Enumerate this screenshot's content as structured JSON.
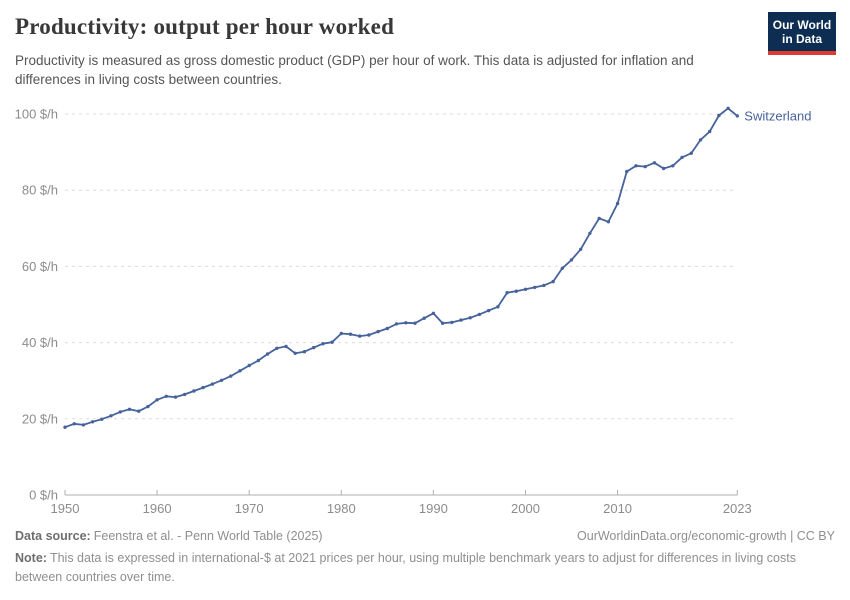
{
  "header": {
    "title": "Productivity: output per hour worked",
    "subtitle": "Productivity is measured as gross domestic product (GDP) per hour of work. This data is adjusted for inflation and differences in living costs between countries.",
    "logo": {
      "line1": "Our World",
      "line2": "in Data"
    }
  },
  "chart_data": {
    "type": "line",
    "title": "Productivity: output per hour worked",
    "xlabel": "",
    "ylabel": "$ per hour",
    "xlim": [
      1950,
      2023
    ],
    "ylim": [
      0,
      100
    ],
    "x_ticks": [
      1950,
      1960,
      1970,
      1980,
      1990,
      2000,
      2010,
      2023
    ],
    "y_ticks": [
      0,
      20,
      40,
      60,
      80,
      100
    ],
    "y_tick_suffix": " $/h",
    "grid": "horizontal-dashed",
    "legend_position": "end-of-line-label",
    "series": [
      {
        "name": "Switzerland",
        "color": "#46639b",
        "x": [
          1950,
          1951,
          1952,
          1953,
          1954,
          1955,
          1956,
          1957,
          1958,
          1959,
          1960,
          1961,
          1962,
          1963,
          1964,
          1965,
          1966,
          1967,
          1968,
          1969,
          1970,
          1971,
          1972,
          1973,
          1974,
          1975,
          1976,
          1977,
          1978,
          1979,
          1980,
          1981,
          1982,
          1983,
          1984,
          1985,
          1986,
          1987,
          1988,
          1989,
          1990,
          1991,
          1992,
          1993,
          1994,
          1995,
          1996,
          1997,
          1998,
          1999,
          2000,
          2001,
          2002,
          2003,
          2004,
          2005,
          2006,
          2007,
          2008,
          2009,
          2010,
          2011,
          2012,
          2013,
          2014,
          2015,
          2016,
          2017,
          2018,
          2019,
          2020,
          2021,
          2022,
          2023
        ],
        "values": [
          17.8,
          18.7,
          18.4,
          19.2,
          19.9,
          20.8,
          21.8,
          22.5,
          22.0,
          23.2,
          25.0,
          25.9,
          25.7,
          26.4,
          27.3,
          28.2,
          29.1,
          30.1,
          31.2,
          32.6,
          34.0,
          35.3,
          37.0,
          38.5,
          39.0,
          37.2,
          37.6,
          38.7,
          39.7,
          40.1,
          42.4,
          42.2,
          41.7,
          42.0,
          42.9,
          43.7,
          44.9,
          45.2,
          45.1,
          46.4,
          47.7,
          45.1,
          45.3,
          45.9,
          46.5,
          47.4,
          48.4,
          49.4,
          53.1,
          53.5,
          54.0,
          54.5,
          55.0,
          56.0,
          59.5,
          61.7,
          64.5,
          68.7,
          72.6,
          71.7,
          76.5,
          84.9,
          86.4,
          86.2,
          87.2,
          85.7,
          86.4,
          88.6,
          89.7,
          93.2,
          95.4,
          99.6,
          101.5,
          99.5
        ]
      }
    ]
  },
  "footer": {
    "source_label": "Data source:",
    "source_text": "Feenstra et al. - Penn World Table (2025)",
    "link_text": "OurWorldinData.org/economic-growth | CC BY",
    "note_label": "Note:",
    "note_text": "This data is expressed in international-$ at 2021 prices per hour, using multiple benchmark years to adjust for differences in living costs between countries over time."
  },
  "colors": {
    "line": "#46639b",
    "grid": "#dcdcdc",
    "axis": "#afafaf",
    "axis_label": "#8c8c8c",
    "logo_bg": "#0d2e52",
    "logo_stripe": "#dc3d33"
  }
}
